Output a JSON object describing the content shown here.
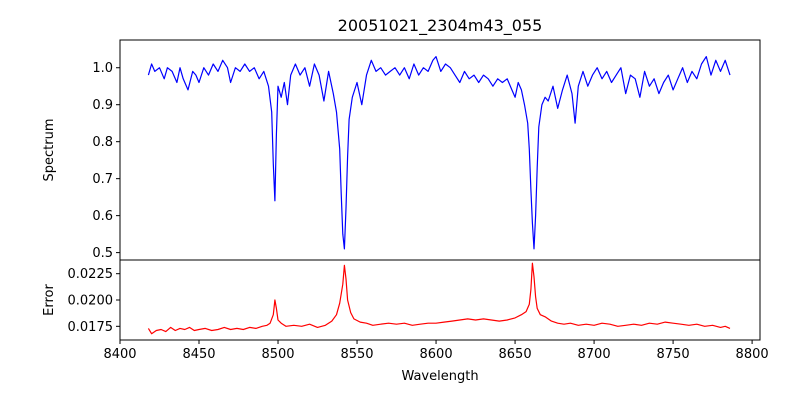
{
  "chart_data": {
    "type": "line",
    "title": "20051021_2304m43_055",
    "xlabel": "Wavelength",
    "xlim": [
      8400,
      8805
    ],
    "xticks": [
      8400,
      8450,
      8500,
      8550,
      8600,
      8650,
      8700,
      8750,
      8800
    ],
    "grid": false,
    "panels": [
      {
        "name": "spectrum",
        "ylabel": "Spectrum",
        "ylim": [
          0.48,
          1.075
        ],
        "yticks": [
          "0.5",
          "0.6",
          "0.7",
          "0.8",
          "0.9",
          "1.0"
        ],
        "series": [
          {
            "color": "#0000ff",
            "x": [
              8418,
              8420,
              8422,
              8425,
              8428,
              8430,
              8433,
              8436,
              8438,
              8440,
              8443,
              8446,
              8448,
              8450,
              8453,
              8456,
              8459,
              8462,
              8465,
              8468,
              8470,
              8473,
              8476,
              8479,
              8482,
              8485,
              8488,
              8491,
              8494,
              8496,
              8497,
              8498,
              8499,
              8500,
              8502,
              8504,
              8506,
              8508,
              8511,
              8514,
              8517,
              8520,
              8523,
              8526,
              8529,
              8532,
              8535,
              8537,
              8539,
              8540,
              8541,
              8542,
              8543,
              8544,
              8545,
              8547,
              8550,
              8553,
              8556,
              8559,
              8562,
              8565,
              8568,
              8571,
              8574,
              8577,
              8580,
              8583,
              8586,
              8589,
              8592,
              8595,
              8598,
              8600,
              8603,
              8606,
              8609,
              8612,
              8615,
              8618,
              8621,
              8624,
              8627,
              8630,
              8633,
              8636,
              8639,
              8642,
              8645,
              8648,
              8650,
              8652,
              8654,
              8656,
              8658,
              8659,
              8660,
              8661,
              8662,
              8663,
              8664,
              8665,
              8667,
              8669,
              8671,
              8674,
              8677,
              8680,
              8683,
              8686,
              8688,
              8690,
              8693,
              8696,
              8699,
              8702,
              8705,
              8708,
              8711,
              8714,
              8717,
              8720,
              8723,
              8726,
              8729,
              8732,
              8735,
              8738,
              8741,
              8744,
              8747,
              8750,
              8753,
              8756,
              8759,
              8762,
              8765,
              8768,
              8771,
              8774,
              8777,
              8780,
              8783,
              8786
            ],
            "y": [
              0.98,
              1.01,
              0.99,
              1.0,
              0.97,
              1.0,
              0.99,
              0.96,
              1.0,
              0.97,
              0.94,
              0.99,
              0.98,
              0.96,
              1.0,
              0.98,
              1.01,
              0.99,
              1.02,
              1.0,
              0.96,
              1.0,
              0.99,
              1.01,
              0.99,
              1.0,
              0.97,
              0.99,
              0.95,
              0.88,
              0.74,
              0.64,
              0.82,
              0.95,
              0.92,
              0.96,
              0.9,
              0.98,
              1.01,
              0.98,
              1.0,
              0.95,
              1.01,
              0.98,
              0.91,
              0.99,
              0.93,
              0.88,
              0.78,
              0.66,
              0.55,
              0.51,
              0.62,
              0.76,
              0.86,
              0.92,
              0.96,
              0.9,
              0.98,
              1.02,
              0.99,
              1.0,
              0.98,
              0.99,
              1.0,
              0.98,
              1.0,
              0.97,
              1.01,
              0.98,
              1.0,
              0.99,
              1.02,
              1.03,
              0.99,
              1.01,
              1.0,
              0.98,
              0.96,
              0.99,
              0.97,
              0.98,
              0.96,
              0.98,
              0.97,
              0.95,
              0.97,
              0.96,
              0.97,
              0.94,
              0.92,
              0.96,
              0.94,
              0.9,
              0.85,
              0.78,
              0.67,
              0.58,
              0.51,
              0.6,
              0.73,
              0.84,
              0.9,
              0.92,
              0.91,
              0.95,
              0.89,
              0.94,
              0.98,
              0.93,
              0.85,
              0.95,
              0.99,
              0.95,
              0.98,
              1.0,
              0.97,
              0.99,
              0.96,
              0.98,
              1.0,
              0.93,
              0.98,
              0.97,
              0.92,
              0.99,
              0.95,
              0.97,
              0.93,
              0.96,
              0.98,
              0.94,
              0.97,
              1.0,
              0.96,
              0.99,
              0.97,
              1.01,
              1.03,
              0.98,
              1.02,
              0.99,
              1.02,
              0.98
            ]
          }
        ]
      },
      {
        "name": "error",
        "ylabel": "Error",
        "ylim": [
          0.0162,
          0.0238
        ],
        "yticks": [
          "0.0175",
          "0.0200",
          "0.0225"
        ],
        "series": [
          {
            "color": "#ff0000",
            "x": [
              8418,
              8420,
              8423,
              8426,
              8429,
              8432,
              8435,
              8438,
              8441,
              8444,
              8447,
              8450,
              8454,
              8458,
              8462,
              8466,
              8470,
              8474,
              8478,
              8482,
              8486,
              8490,
              8493,
              8495,
              8497,
              8498,
              8499,
              8500,
              8502,
              8505,
              8510,
              8515,
              8520,
              8525,
              8530,
              8534,
              8537,
              8539,
              8541,
              8542,
              8543,
              8544,
              8546,
              8548,
              8552,
              8556,
              8560,
              8565,
              8570,
              8575,
              8580,
              8585,
              8590,
              8595,
              8600,
              8605,
              8610,
              8615,
              8620,
              8625,
              8630,
              8635,
              8640,
              8645,
              8650,
              8654,
              8657,
              8659,
              8660,
              8661,
              8662,
              8663,
              8664,
              8666,
              8669,
              8673,
              8677,
              8681,
              8685,
              8690,
              8695,
              8700,
              8705,
              8710,
              8715,
              8720,
              8725,
              8730,
              8735,
              8740,
              8745,
              8750,
              8755,
              8760,
              8765,
              8770,
              8775,
              8780,
              8783,
              8786
            ],
            "y": [
              0.0173,
              0.0168,
              0.0171,
              0.0172,
              0.017,
              0.0174,
              0.0171,
              0.0173,
              0.0172,
              0.0174,
              0.0171,
              0.0172,
              0.0173,
              0.0171,
              0.0172,
              0.0174,
              0.0172,
              0.0173,
              0.0172,
              0.0174,
              0.0173,
              0.0175,
              0.0176,
              0.0178,
              0.0186,
              0.02,
              0.0192,
              0.0181,
              0.0178,
              0.0175,
              0.0176,
              0.0175,
              0.0177,
              0.0174,
              0.0176,
              0.018,
              0.0186,
              0.0197,
              0.0215,
              0.0233,
              0.022,
              0.02,
              0.0188,
              0.0182,
              0.0179,
              0.0178,
              0.0176,
              0.0177,
              0.0178,
              0.0177,
              0.0178,
              0.0176,
              0.0177,
              0.0178,
              0.0178,
              0.0179,
              0.018,
              0.0181,
              0.0182,
              0.0181,
              0.0182,
              0.0181,
              0.018,
              0.0181,
              0.0183,
              0.0186,
              0.0189,
              0.0196,
              0.021,
              0.0235,
              0.0222,
              0.0203,
              0.0192,
              0.0186,
              0.0184,
              0.018,
              0.0178,
              0.0177,
              0.0178,
              0.0176,
              0.0177,
              0.0176,
              0.0178,
              0.0177,
              0.0175,
              0.0176,
              0.0177,
              0.0176,
              0.0178,
              0.0177,
              0.0179,
              0.0178,
              0.0177,
              0.0176,
              0.0177,
              0.0175,
              0.0176,
              0.0174,
              0.0175,
              0.0173
            ]
          }
        ]
      }
    ]
  }
}
